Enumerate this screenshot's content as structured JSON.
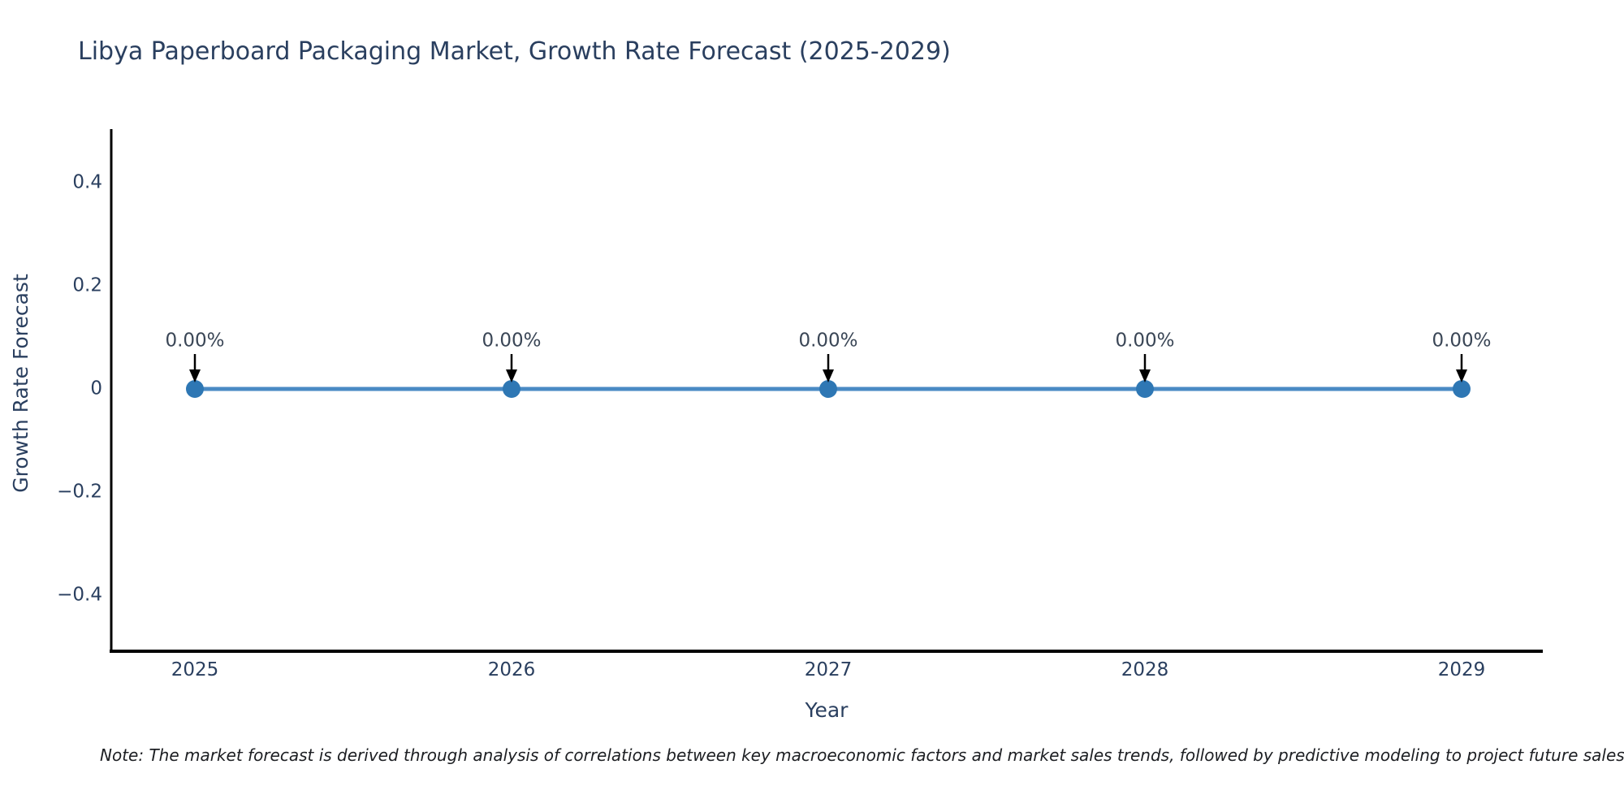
{
  "page": {
    "title": "Libya Paperboard Packaging Market, Growth Rate Forecast (2025-2029)",
    "footnote": "Note: The market forecast is derived through analysis of correlations between key macroeconomic factors and market sales trends, followed by predictive modeling to project future sales."
  },
  "chart_data": {
    "type": "line",
    "title": "Libya Paperboard Packaging Market, Growth Rate Forecast (2025-2029)",
    "xlabel": "Year",
    "ylabel": "Growth Rate Forecast",
    "categories": [
      "2025",
      "2026",
      "2027",
      "2028",
      "2029"
    ],
    "series": [
      {
        "name": "Growth Rate Forecast",
        "values": [
          0,
          0,
          0,
          0,
          0
        ]
      }
    ],
    "point_labels": [
      "0.00%",
      "0.00%",
      "0.00%",
      "0.00%",
      "0.00%"
    ],
    "y_ticks": [
      {
        "value": 0.4,
        "label": "0.4"
      },
      {
        "value": 0.2,
        "label": "0.2"
      },
      {
        "value": 0,
        "label": "0"
      },
      {
        "value": -0.2,
        "label": "−0.2"
      },
      {
        "value": -0.4,
        "label": "−0.4"
      }
    ],
    "ylim": [
      -0.5,
      0.5
    ],
    "grid": false,
    "legend": "none",
    "colors": {
      "line": "#4a8ac4",
      "marker": "#2e77b4",
      "axis": "#000000",
      "text": "#2a3f5f",
      "annotation": "#3a4656",
      "arrow": "#000000"
    }
  }
}
